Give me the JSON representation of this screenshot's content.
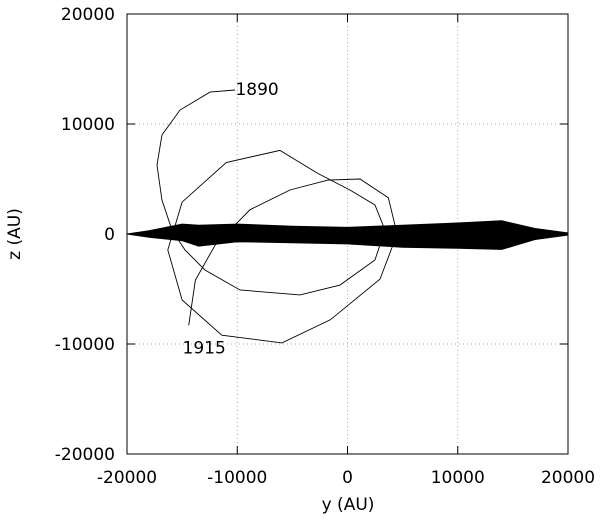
{
  "chart_data": {
    "type": "line",
    "xlabel": "y (AU)",
    "ylabel": "z (AU)",
    "xlim": [
      -20000,
      20000
    ],
    "ylim": [
      -20000,
      20000
    ],
    "xticks": [
      -20000,
      -10000,
      0,
      10000,
      20000
    ],
    "yticks": [
      -20000,
      -10000,
      0,
      10000,
      20000
    ],
    "grid": true,
    "series": [
      {
        "color": "#000000",
        "x": [
          -10200,
          -12470,
          -15190,
          -16830,
          -17280,
          -16830,
          -15920,
          -14740,
          -12930,
          -9750,
          -4310,
          -680,
          2490,
          3400,
          2490,
          220,
          -2680,
          -6130,
          -11000,
          -15000,
          -16300,
          -15000,
          -11400,
          -5950,
          -1560,
          2950,
          4500,
          3700,
          1130,
          -1770,
          -5220,
          -8850,
          -12000,
          -13800,
          -14400
        ],
        "y": [
          13090,
          12900,
          11270,
          9000,
          6270,
          3090,
          360,
          -1450,
          -3270,
          -5090,
          -5540,
          -4640,
          -2360,
          360,
          2640,
          4000,
          5500,
          7600,
          6500,
          2900,
          -1450,
          -6000,
          -9200,
          -9900,
          -7800,
          -4100,
          0,
          3300,
          5000,
          4900,
          4000,
          2200,
          -1000,
          -4200,
          -8300
        ]
      },
      {
        "color": "#000000",
        "x": [
          -20000,
          -18000,
          -15000,
          -13500,
          -10000,
          -5000,
          0,
          5000,
          10000,
          14000,
          17000,
          20000
        ],
        "upper": [
          0,
          300,
          900,
          800,
          900,
          700,
          600,
          800,
          1000,
          1200,
          500,
          100
        ],
        "lower": [
          0,
          -300,
          -600,
          -1100,
          -700,
          -800,
          -900,
          -1200,
          -1300,
          -1400,
          -500,
          -100
        ]
      }
    ],
    "annotations": [
      {
        "text": "1890",
        "x": -8200,
        "y": 13200
      },
      {
        "text": "1915",
        "x": -13000,
        "y": -10300
      }
    ]
  }
}
